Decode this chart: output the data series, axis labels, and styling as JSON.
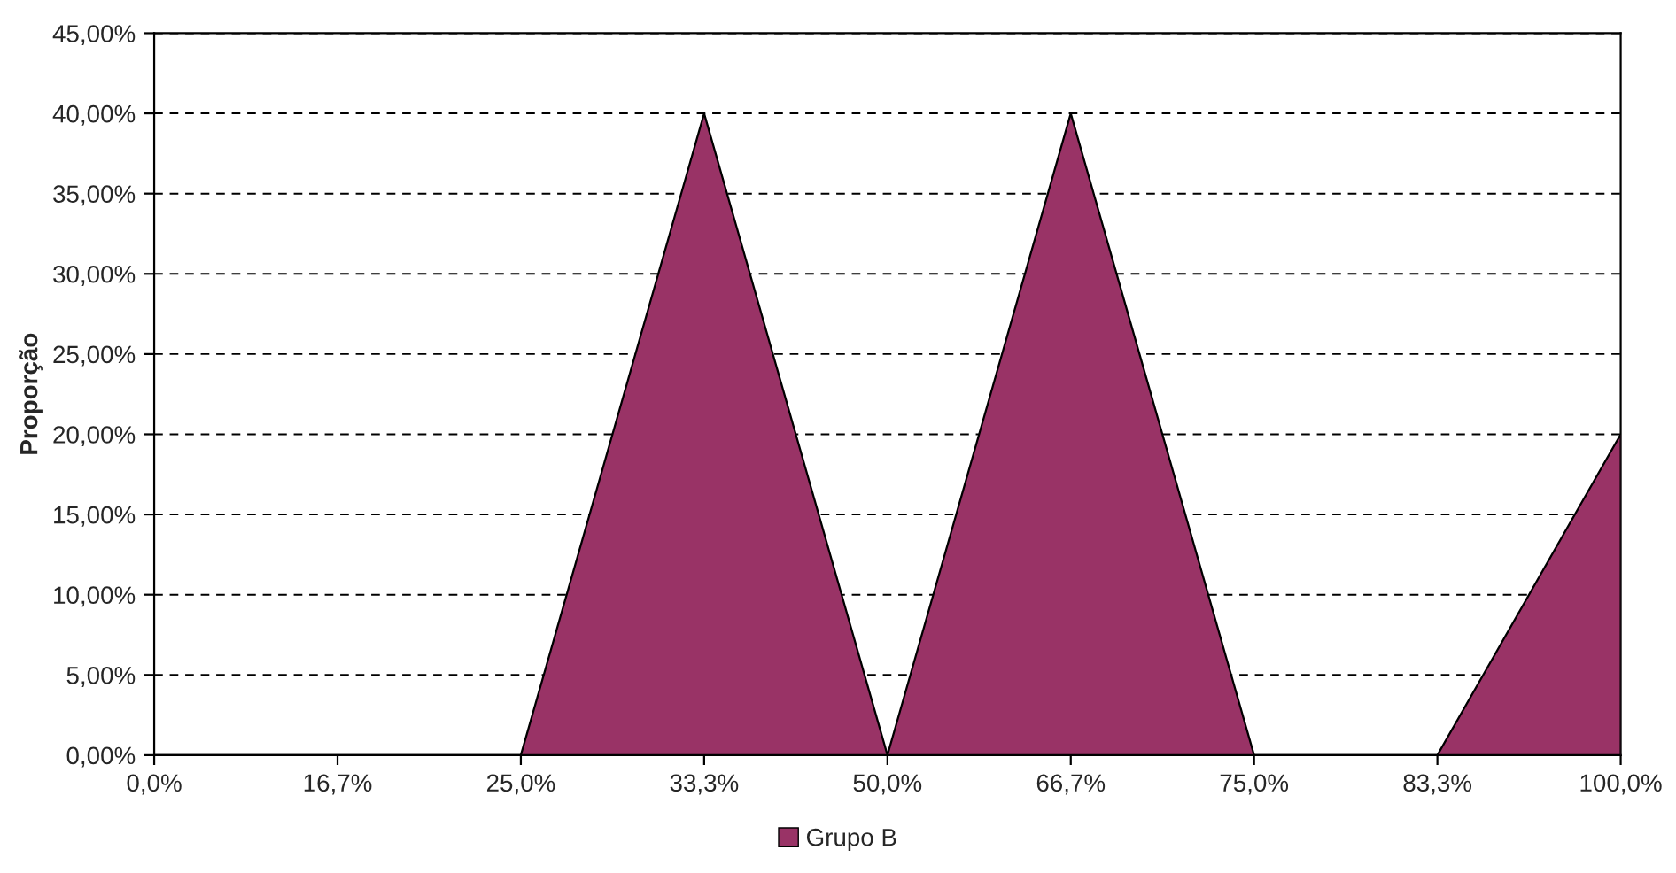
{
  "chart_data": {
    "type": "area",
    "ylabel": "Proporção",
    "categories": [
      "0,0%",
      "16,7%",
      "25,0%",
      "33,3%",
      "50,0%",
      "66,7%",
      "75,0%",
      "83,3%",
      "100,0%"
    ],
    "series": [
      {
        "name": "Grupo B",
        "color": "#993366",
        "values": [
          0,
          0,
          0,
          40,
          0,
          40,
          0,
          0,
          20
        ]
      }
    ],
    "ylim": [
      0,
      45
    ],
    "yticks": [
      {
        "value": 0,
        "label": "0,00%"
      },
      {
        "value": 5,
        "label": "5,00%"
      },
      {
        "value": 10,
        "label": "10,00%"
      },
      {
        "value": 15,
        "label": "15,00%"
      },
      {
        "value": 20,
        "label": "20,00%"
      },
      {
        "value": 25,
        "label": "25,00%"
      },
      {
        "value": 30,
        "label": "30,00%"
      },
      {
        "value": 35,
        "label": "35,00%"
      },
      {
        "value": 40,
        "label": "40,00%"
      },
      {
        "value": 45,
        "label": "45,00%"
      }
    ],
    "grid": "y",
    "legend": "bottom"
  }
}
